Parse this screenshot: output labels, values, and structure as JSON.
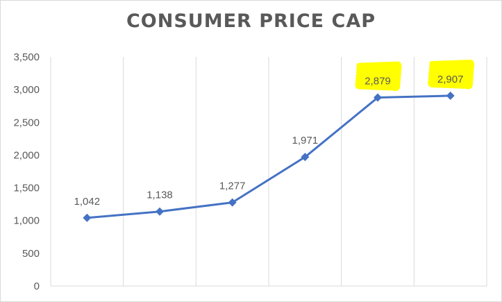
{
  "chart_data": {
    "type": "line",
    "title": "CONSUMER PRICE CAP",
    "xlabel": "",
    "ylabel": "",
    "categories": [
      "",
      "",
      "",
      "",
      "",
      ""
    ],
    "series": [
      {
        "values": [
          1042,
          1138,
          1277,
          1971,
          2879,
          2907
        ],
        "data_labels": [
          "1,042",
          "1,138",
          "1,277",
          "1,971",
          "2,879",
          "2,907"
        ]
      }
    ],
    "ylim": [
      0,
      3500
    ],
    "yticks": [
      0,
      500,
      1000,
      1500,
      2000,
      2500,
      3000,
      3500
    ],
    "ytick_labels": [
      "0",
      "500",
      "1,000",
      "1,500",
      "2,000",
      "2,500",
      "3,000",
      "3,500"
    ],
    "grid": "vertical",
    "legend": "none",
    "highlighted_points": [
      4,
      5
    ],
    "colors": {
      "line": "#4472c4",
      "highlight": "#ffff00",
      "grid": "#d9d9d9",
      "text": "#595959"
    }
  }
}
